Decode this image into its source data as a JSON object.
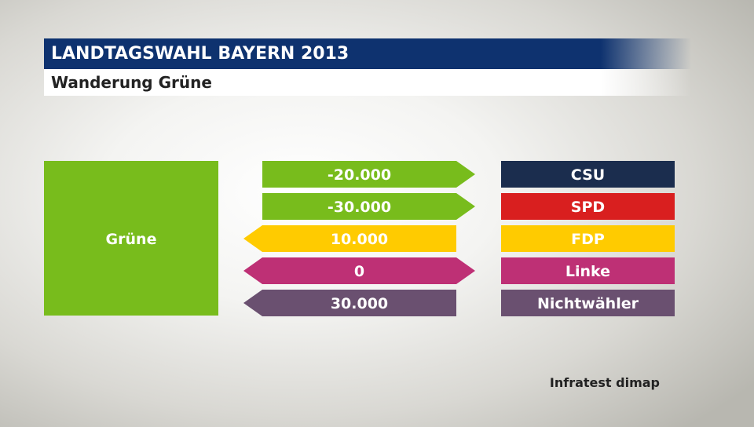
{
  "header": {
    "title": "LANDTAGSWAHL BAYERN 2013",
    "subtitle": "Wanderung Grüne"
  },
  "source": "Infratest dimap",
  "chart_data": {
    "type": "bar",
    "subject": {
      "label": "Grüne",
      "color": "#78bc1c"
    },
    "flows": [
      {
        "party": "CSU",
        "value": -20000,
        "label": "-20.000",
        "direction": "out",
        "party_color": "#1b2d4e",
        "arrow_color": "#78bc1c"
      },
      {
        "party": "SPD",
        "value": -30000,
        "label": "-30.000",
        "direction": "out",
        "party_color": "#d91f1f",
        "arrow_color": "#78bc1c"
      },
      {
        "party": "FDP",
        "value": 10000,
        "label": "10.000",
        "direction": "in",
        "party_color": "#ffcb00",
        "arrow_color": "#ffcb00"
      },
      {
        "party": "Linke",
        "value": 0,
        "label": "0",
        "direction": "both",
        "party_color": "#be3075",
        "arrow_color": "#be3075"
      },
      {
        "party": "Nichtwähler",
        "value": 30000,
        "label": "30.000",
        "direction": "in",
        "party_color": "#6a5070",
        "arrow_color": "#6a5070"
      }
    ]
  }
}
